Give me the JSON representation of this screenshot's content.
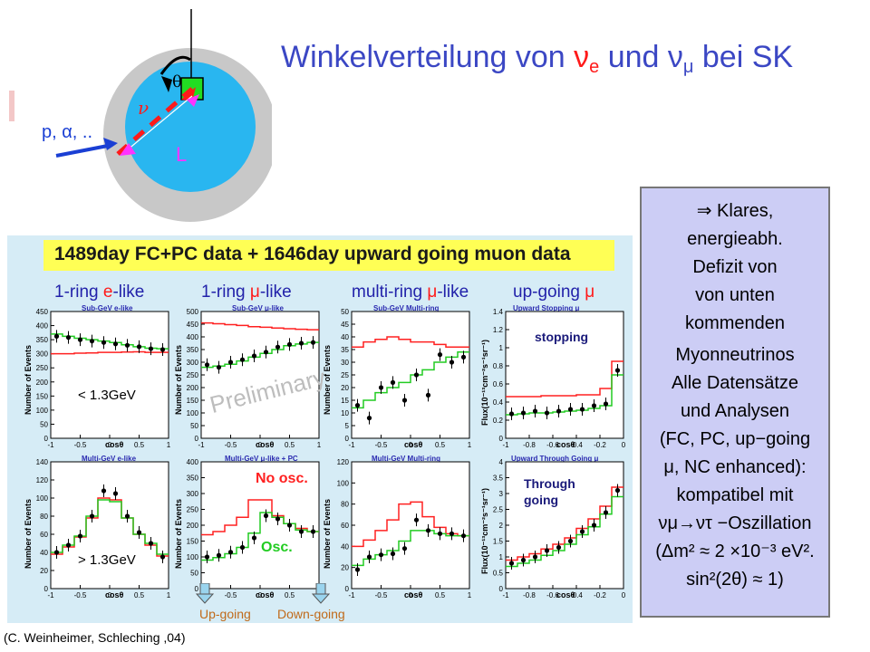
{
  "title": {
    "pre": "Winkelverteilung von ",
    "nu1": "ν",
    "sub1": "e",
    "mid": " und ",
    "nu2": "ν",
    "sub2": "μ",
    "post": " bei SK"
  },
  "diagram": {
    "labels": {
      "particles": "p, α, ..",
      "nu": "ν",
      "theta": "θ",
      "length": "L"
    }
  },
  "banner": "1489day FC+PC data  +  1646day upward going muon data",
  "columns": [
    {
      "pre": "1-ring ",
      "em": "e",
      "post": "-like"
    },
    {
      "pre": "1-ring ",
      "em": "μ",
      "post": "-like"
    },
    {
      "pre": "multi-ring ",
      "em": "μ",
      "post": "-like"
    },
    {
      "pre": "up-going ",
      "em": "μ",
      "post": ""
    }
  ],
  "plot_titles": [
    "Sub-GeV e-like",
    "Sub-GeV μ-like",
    "Sub-GeV Multi-ring",
    "Upward Stopping μ",
    "Multi-GeV e-like",
    "Multi-GeV μ-like + PC",
    "Multi-GeV Multi-ring",
    "Upward Through Going μ"
  ],
  "axis": {
    "xlabel": "cosθ",
    "ylabel_events": "Number of Events",
    "ylabel_flux": "Flux(10⁻¹³cm⁻²s⁻¹sr⁻¹)"
  },
  "annotations": {
    "lt13": "< 1.3GeV",
    "gt13": "> 1.3GeV",
    "preliminary": "Preliminary",
    "noosc": "No osc.",
    "osc": "Osc.",
    "stopping": "stopping",
    "through1": "Through",
    "through2": "going",
    "upgoing": "Up-going",
    "downgoing": "Down-going"
  },
  "infobox": {
    "lines": [
      "⇒ Klares,",
      "energieabh.",
      "Defizit von",
      "von unten",
      "kommenden",
      "Myonneutrinos",
      "Alle Datensätze",
      "und Analysen",
      "(FC, PC, up−going",
      "μ, NC enhanced):",
      "kompatibel mit",
      "νμ→ντ −Oszillation",
      "(Δm² ≈ 2 ×10⁻³ eV².",
      "sin²(2θ) ≈ 1)"
    ]
  },
  "credit": "(C. Weinheimer, Schleching ,04)",
  "colors": {
    "title": "#3b47c4",
    "earth": "#29b6f0",
    "shell": "#c8c8c8",
    "panel": "#d6ecf6",
    "band": "#ffff55",
    "box": "#cccdf5",
    "noosc": "#ff2020",
    "osc": "#22cc22"
  },
  "chart_data": [
    {
      "type": "scatter",
      "title": "Sub-GeV e-like",
      "xlabel": "cosθ",
      "ylabel": "Number of Events",
      "x": [
        -0.9,
        -0.7,
        -0.5,
        -0.3,
        -0.1,
        0.1,
        0.3,
        0.5,
        0.7,
        0.9
      ],
      "ylim": [
        0,
        450
      ],
      "yticks": [
        0,
        50,
        100,
        150,
        200,
        250,
        300,
        350,
        400,
        450
      ],
      "values": [
        362,
        358,
        350,
        345,
        340,
        335,
        330,
        325,
        318,
        315
      ],
      "series": [
        {
          "name": "No osc.",
          "values": [
            300,
            300,
            302,
            303,
            305,
            305,
            306,
            307,
            305,
            305
          ]
        },
        {
          "name": "Osc.",
          "values": [
            370,
            362,
            355,
            350,
            345,
            340,
            332,
            325,
            320,
            318
          ]
        }
      ]
    },
    {
      "type": "scatter",
      "title": "Sub-GeV μ-like",
      "xlabel": "cosθ",
      "ylabel": "Number of Events",
      "x": [
        -0.9,
        -0.7,
        -0.5,
        -0.3,
        -0.1,
        0.1,
        0.3,
        0.5,
        0.7,
        0.9
      ],
      "ylim": [
        0,
        500
      ],
      "yticks": [
        0,
        50,
        100,
        150,
        200,
        250,
        300,
        350,
        400,
        450,
        500
      ],
      "values": [
        290,
        280,
        300,
        310,
        325,
        340,
        360,
        370,
        375,
        378
      ],
      "series": [
        {
          "name": "No osc.",
          "values": [
            455,
            452,
            448,
            445,
            440,
            438,
            435,
            432,
            430,
            428
          ]
        },
        {
          "name": "Osc.",
          "values": [
            280,
            285,
            292,
            305,
            320,
            335,
            350,
            365,
            372,
            378
          ]
        }
      ]
    },
    {
      "type": "scatter",
      "title": "Sub-GeV Multi-ring",
      "xlabel": "cosθ",
      "ylabel": "Number of Events",
      "x": [
        -0.9,
        -0.7,
        -0.5,
        -0.3,
        -0.1,
        0.1,
        0.3,
        0.5,
        0.7,
        0.9
      ],
      "ylim": [
        0,
        50
      ],
      "yticks": [
        0,
        5,
        10,
        15,
        20,
        25,
        30,
        35,
        40,
        45,
        50
      ],
      "values": [
        13,
        8,
        20,
        22,
        15,
        25,
        17,
        33,
        30,
        32
      ],
      "series": [
        {
          "name": "No osc.",
          "values": [
            36,
            38,
            39,
            40,
            39,
            38,
            38,
            37,
            36,
            36
          ]
        },
        {
          "name": "Osc.",
          "values": [
            12,
            15,
            18,
            20,
            22,
            25,
            27,
            30,
            32,
            34
          ]
        }
      ]
    },
    {
      "type": "scatter",
      "title": "Upward Stopping μ",
      "xlabel": "cosθ",
      "ylabel": "Flux(10⁻¹³cm⁻²s⁻¹sr⁻¹)",
      "x": [
        -0.95,
        -0.85,
        -0.75,
        -0.65,
        -0.55,
        -0.45,
        -0.35,
        -0.25,
        -0.15,
        -0.05
      ],
      "ylim": [
        0,
        1.4
      ],
      "yticks": [
        0,
        0.2,
        0.4,
        0.6,
        0.8,
        1,
        1.2,
        1.4
      ],
      "values": [
        0.27,
        0.28,
        0.3,
        0.28,
        0.3,
        0.32,
        0.32,
        0.36,
        0.38,
        0.75
      ],
      "series": [
        {
          "name": "No osc.",
          "values": [
            0.46,
            0.46,
            0.46,
            0.47,
            0.47,
            0.47,
            0.48,
            0.48,
            0.55,
            0.85
          ]
        },
        {
          "name": "Osc.",
          "values": [
            0.26,
            0.27,
            0.28,
            0.28,
            0.29,
            0.3,
            0.31,
            0.33,
            0.36,
            0.7
          ]
        }
      ]
    },
    {
      "type": "scatter",
      "title": "Multi-GeV e-like",
      "xlabel": "cosθ",
      "ylabel": "Number of Events",
      "x": [
        -0.9,
        -0.7,
        -0.5,
        -0.3,
        -0.1,
        0.1,
        0.3,
        0.5,
        0.7,
        0.9
      ],
      "ylim": [
        0,
        140
      ],
      "yticks": [
        0,
        20,
        40,
        60,
        80,
        100,
        120,
        140
      ],
      "values": [
        40,
        48,
        58,
        80,
        108,
        105,
        80,
        62,
        50,
        35
      ],
      "series": [
        {
          "name": "No osc.",
          "values": [
            38,
            46,
            57,
            78,
            100,
            98,
            78,
            60,
            48,
            36
          ]
        },
        {
          "name": "Osc.",
          "values": [
            40,
            48,
            58,
            80,
            98,
            96,
            78,
            60,
            50,
            38
          ]
        }
      ]
    },
    {
      "type": "scatter",
      "title": "Multi-GeV μ-like + PC",
      "xlabel": "cosθ",
      "ylabel": "Number of Events",
      "x": [
        -0.9,
        -0.7,
        -0.5,
        -0.3,
        -0.1,
        0.1,
        0.3,
        0.5,
        0.7,
        0.9
      ],
      "ylim": [
        0,
        400
      ],
      "yticks": [
        0,
        50,
        100,
        150,
        200,
        250,
        300,
        350,
        400
      ],
      "values": [
        100,
        105,
        115,
        130,
        160,
        230,
        220,
        200,
        180,
        180
      ],
      "series": [
        {
          "name": "No osc.",
          "values": [
            170,
            180,
            200,
            225,
            280,
            280,
            230,
            205,
            190,
            180
          ]
        },
        {
          "name": "Osc.",
          "values": [
            90,
            98,
            110,
            130,
            175,
            240,
            225,
            205,
            185,
            180
          ]
        }
      ]
    },
    {
      "type": "scatter",
      "title": "Multi-GeV Multi-ring",
      "xlabel": "cosθ",
      "ylabel": "Number of Events",
      "x": [
        -0.9,
        -0.7,
        -0.5,
        -0.3,
        -0.1,
        0.1,
        0.3,
        0.5,
        0.7,
        0.9
      ],
      "ylim": [
        0,
        120
      ],
      "yticks": [
        0,
        20,
        40,
        60,
        80,
        100,
        120
      ],
      "values": [
        18,
        30,
        32,
        33,
        38,
        65,
        55,
        52,
        52,
        50
      ],
      "series": [
        {
          "name": "No osc.",
          "values": [
            40,
            46,
            55,
            65,
            80,
            82,
            68,
            58,
            52,
            50
          ]
        },
        {
          "name": "Osc.",
          "values": [
            22,
            28,
            32,
            36,
            45,
            55,
            55,
            52,
            50,
            50
          ]
        }
      ]
    },
    {
      "type": "scatter",
      "title": "Upward Through Going μ",
      "xlabel": "cosθ",
      "ylabel": "Flux(10⁻¹³cm⁻²s⁻¹sr⁻¹)",
      "x": [
        -0.95,
        -0.85,
        -0.75,
        -0.65,
        -0.55,
        -0.45,
        -0.35,
        -0.25,
        -0.15,
        -0.05
      ],
      "ylim": [
        0,
        4
      ],
      "yticks": [
        0,
        0.5,
        1,
        1.5,
        2,
        2.5,
        3,
        3.5,
        4
      ],
      "values": [
        0.8,
        0.9,
        1.0,
        1.2,
        1.3,
        1.5,
        1.8,
        2.0,
        2.4,
        3.1
      ],
      "series": [
        {
          "name": "No osc.",
          "values": [
            0.9,
            1.0,
            1.1,
            1.25,
            1.4,
            1.6,
            1.9,
            2.2,
            2.6,
            3.2
          ]
        },
        {
          "name": "Osc.",
          "values": [
            0.7,
            0.8,
            0.9,
            1.05,
            1.2,
            1.4,
            1.7,
            1.95,
            2.35,
            2.9
          ]
        }
      ]
    }
  ]
}
